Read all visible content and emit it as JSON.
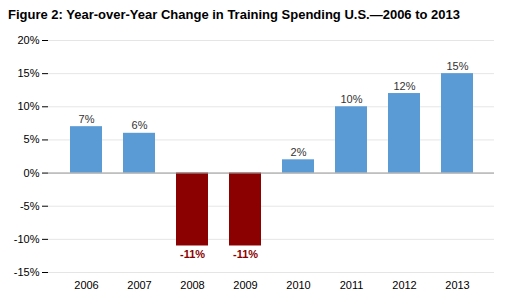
{
  "chart_data": {
    "type": "bar",
    "title": "Figure 2: Year-over-Year Change in Training Spending U.S.—2006 to 2013",
    "categories": [
      "2006",
      "2007",
      "2008",
      "2009",
      "2010",
      "2011",
      "2012",
      "2013"
    ],
    "values": [
      7,
      6,
      -11,
      -11,
      2,
      10,
      12,
      15
    ],
    "value_labels": [
      "7%",
      "6%",
      "-11%",
      "-11%",
      "2%",
      "10%",
      "12%",
      "15%"
    ],
    "data_labels": true,
    "colors": [
      "#5B9BD5",
      "#5B9BD5",
      "#8B0000",
      "#8B0000",
      "#5B9BD5",
      "#5B9BD5",
      "#5B9BD5",
      "#5B9BD5"
    ],
    "ylim": [
      -15,
      20
    ],
    "yticks": [
      {
        "value": -15,
        "label": "-15%"
      },
      {
        "value": -10,
        "label": "-10%"
      },
      {
        "value": -5,
        "label": "-5%"
      },
      {
        "value": 0,
        "label": "0%"
      },
      {
        "value": 5,
        "label": "5%"
      },
      {
        "value": 10,
        "label": "10%"
      },
      {
        "value": 15,
        "label": "15%"
      },
      {
        "value": 20,
        "label": "20%"
      }
    ],
    "grid": true
  }
}
